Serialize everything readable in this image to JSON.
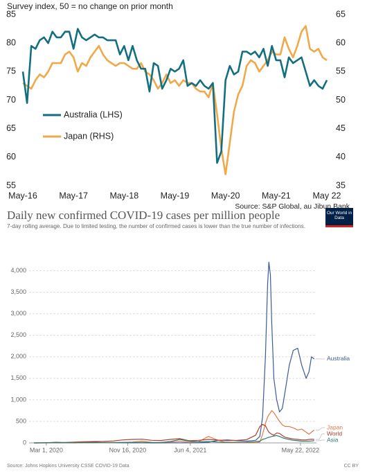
{
  "chart_data": [
    {
      "type": "line",
      "title": "Survey index, 50 = no change on prior month",
      "source": "Source: S&P Global, au Jibun Bank",
      "categories": [
        "May-16",
        null,
        null,
        null,
        null,
        null,
        null,
        null,
        null,
        null,
        null,
        null,
        "May-17",
        null,
        null,
        null,
        null,
        null,
        null,
        null,
        null,
        null,
        null,
        null,
        "May-18",
        null,
        null,
        null,
        null,
        null,
        null,
        null,
        null,
        null,
        null,
        null,
        "May-19",
        null,
        null,
        null,
        null,
        null,
        null,
        null,
        null,
        null,
        null,
        null,
        "May-20",
        null,
        null,
        null,
        null,
        null,
        null,
        null,
        null,
        null,
        null,
        null,
        "May-21",
        null,
        null,
        null,
        null,
        null,
        null,
        null,
        null,
        null,
        null,
        null,
        "May 22"
      ],
      "ylim": [
        55,
        85
      ],
      "yticks": [
        55,
        60,
        65,
        70,
        75,
        80,
        85
      ],
      "y2lim": [
        35,
        65
      ],
      "y2ticks": [
        35,
        40,
        45,
        50,
        55,
        60,
        65
      ],
      "grid": false,
      "series": [
        {
          "name": "Australia (LHS)",
          "color": "#136f7f",
          "values": [
            75,
            69.5,
            79.5,
            79,
            80.5,
            81,
            80,
            82,
            81,
            81,
            82,
            82,
            79,
            82.5,
            81,
            80.5,
            81,
            81.5,
            81,
            81,
            80.5,
            80.5,
            80.5,
            78,
            79.5,
            77,
            79.5,
            77,
            75.5,
            75.5,
            71.5,
            76.5,
            76,
            72,
            73.5,
            75.5,
            75,
            75.5,
            77,
            72.5,
            73,
            72.5,
            73.5,
            72.5,
            72,
            73,
            59,
            61,
            73.5,
            76,
            74.5,
            75,
            78.5,
            78.5,
            78,
            78.5,
            77.5,
            79,
            76,
            79.5,
            77,
            77,
            74,
            77.5,
            76.5,
            77,
            77.5,
            75,
            72.5,
            73.5,
            72.5,
            72,
            73.5
          ]
        },
        {
          "name": "Japan (RHS)",
          "color": "#f0a848",
          "axis": "y2",
          "values": [
            53,
            52.5,
            52,
            53.5,
            54.5,
            54,
            55,
            56.5,
            56.5,
            56.5,
            58,
            58.5,
            57.5,
            55,
            56.5,
            56,
            57.5,
            58.5,
            59.5,
            58,
            57,
            56.5,
            56,
            56.5,
            56.5,
            56,
            55.5,
            55.5,
            56.5,
            55,
            54.5,
            53.5,
            52,
            53,
            54.5,
            53,
            53.5,
            52.5,
            53.5,
            53,
            53,
            52,
            51.5,
            51.5,
            50.5,
            53,
            47.5,
            41.5,
            37,
            42.5,
            48,
            51,
            52.5,
            56,
            57,
            56.5,
            55,
            56,
            57,
            58.5,
            58,
            58,
            61,
            59,
            57.5,
            59.5,
            62,
            63,
            59,
            58.5,
            59,
            57.5,
            57
          ]
        }
      ]
    },
    {
      "type": "line",
      "title": "Daily new confirmed COVID-19 cases per million people",
      "subtitle": "7-day rolling average. Due to limited testing, the number of confirmed cases is lower than the true number of infections.",
      "logo": "Our World in Data",
      "source": "Source: Johns Hopkins University CSSE COVID-19 Data",
      "license": "CC BY",
      "x": [
        "2020-01-22",
        "2020-02-01",
        "2020-03-01",
        "2020-04-01",
        "2020-05-01",
        "2020-06-01",
        "2020-07-01",
        "2020-08-01",
        "2020-09-01",
        "2020-10-01",
        "2020-11-01",
        "2020-12-01",
        "2021-01-01",
        "2021-02-01",
        "2021-03-01",
        "2021-04-01",
        "2021-05-01",
        "2021-06-01",
        "2021-07-01",
        "2021-08-01",
        "2021-09-01",
        "2021-10-01",
        "2021-11-01",
        "2021-12-01",
        "2021-12-30",
        "2022-01-12",
        "2022-01-21",
        "2022-01-30",
        "2022-02-06",
        "2022-02-10",
        "2022-02-15",
        "2022-02-19",
        "2022-02-26",
        "2022-03-07",
        "2022-03-16",
        "2022-03-25",
        "2022-04-03",
        "2022-04-16",
        "2022-04-29",
        "2022-05-13",
        "2022-05-26",
        "2022-06-09",
        "2022-06-18",
        "2022-06-26",
        "2022-07-05"
      ],
      "xlim": [
        "2020-01-06",
        "2022-07-12"
      ],
      "xticks": [
        {
          "value": "2020-03-01",
          "label": "Mar 1, 2020"
        },
        {
          "value": "2020-11-16",
          "label": "Nov 16, 2020"
        },
        {
          "value": "2021-06-04",
          "label": "Jun 4, 2021"
        },
        {
          "value": "2022-05-22",
          "label": "May 22, 2022"
        }
      ],
      "ylim": [
        0,
        4300
      ],
      "yticks": [
        0,
        500,
        {
          "value": 1000,
          "label": "1,000"
        },
        {
          "value": 1500,
          "label": "1,500"
        },
        {
          "value": 2000,
          "label": "2,000"
        },
        {
          "value": 2500,
          "label": "2,500"
        },
        {
          "value": 3000,
          "label": "3,000"
        },
        {
          "value": 3500,
          "label": "3,500"
        },
        {
          "value": 4000,
          "label": "4,000"
        }
      ],
      "grid": true,
      "series": [
        {
          "name": "Australia",
          "color": "#3c5a99",
          "values": [
            0,
            0,
            1,
            15,
            2,
            1,
            10,
            20,
            5,
            1,
            1,
            1,
            2,
            0,
            0,
            1,
            1,
            1,
            3,
            15,
            60,
            70,
            50,
            40,
            60,
            150,
            600,
            2000,
            3700,
            4200,
            3900,
            2800,
            1500,
            1000,
            720,
            800,
            1200,
            1800,
            2150,
            2200,
            1800,
            1500,
            1650,
            2000,
            1950
          ]
        },
        {
          "name": "Japan",
          "color": "#e07a4b",
          "values": [
            0,
            0,
            0,
            3,
            2,
            0,
            5,
            8,
            4,
            4,
            10,
            20,
            40,
            10,
            8,
            20,
            40,
            15,
            30,
            150,
            60,
            2,
            1,
            1,
            1,
            20,
            200,
            450,
            600,
            650,
            700,
            750,
            700,
            600,
            500,
            420,
            380,
            380,
            350,
            300,
            320,
            250,
            200,
            250,
            300
          ]
        },
        {
          "name": "World",
          "color": "#b33c2c",
          "values": [
            0,
            0.5,
            5,
            10,
            12,
            17,
            25,
            32,
            35,
            45,
            70,
            80,
            85,
            60,
            55,
            80,
            100,
            50,
            60,
            80,
            65,
            55,
            60,
            75,
            180,
            380,
            430,
            400,
            300,
            250,
            220,
            200,
            180,
            230,
            220,
            170,
            130,
            110,
            90,
            80,
            70,
            70,
            80,
            85,
            80
          ]
        },
        {
          "name": "Asia",
          "color": "#2a7b6f",
          "values": [
            0,
            0.5,
            1,
            2,
            2,
            3,
            5,
            7,
            9,
            10,
            10,
            10,
            10,
            8,
            10,
            30,
            80,
            40,
            25,
            30,
            20,
            15,
            13,
            15,
            25,
            40,
            80,
            100,
            120,
            130,
            140,
            150,
            160,
            170,
            150,
            120,
            100,
            80,
            60,
            50,
            40,
            40,
            40,
            45,
            50
          ]
        }
      ]
    }
  ]
}
